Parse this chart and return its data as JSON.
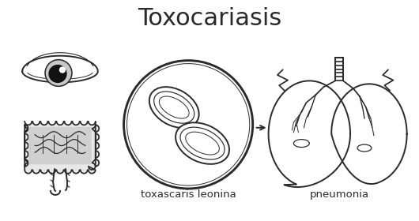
{
  "title": "Toxocariasis",
  "label_parasite": "toxascaris leonina",
  "label_disease": "pneumonia",
  "bg_color": "#ffffff",
  "line_color": "#2a2a2a",
  "title_fontsize": 22,
  "label_fontsize": 9.5
}
